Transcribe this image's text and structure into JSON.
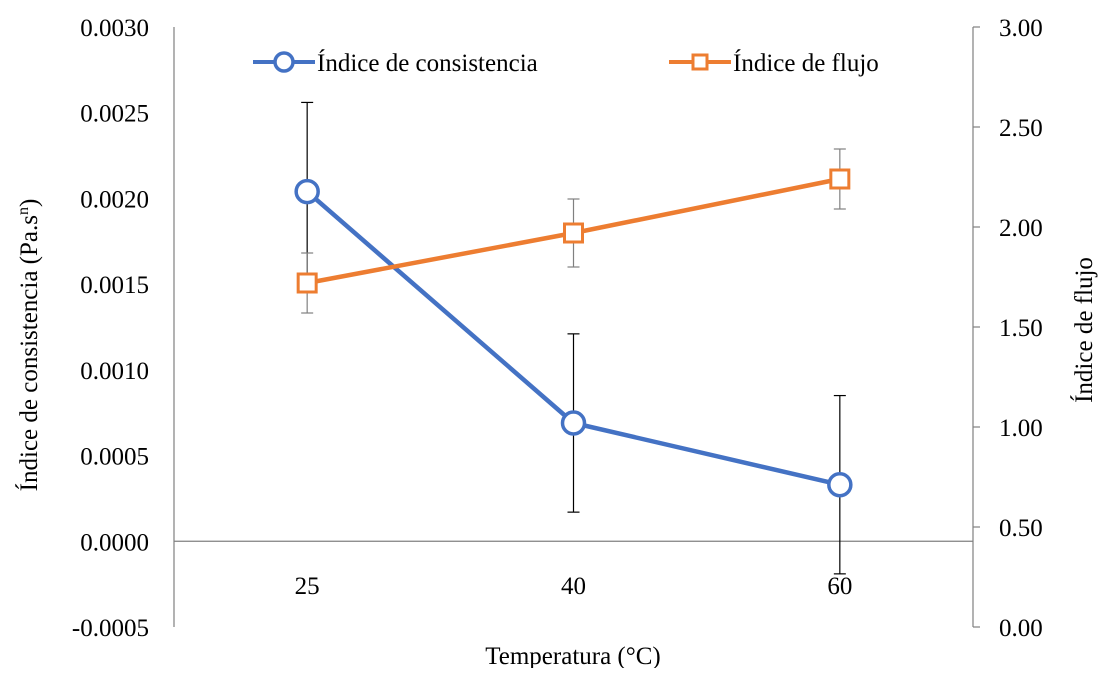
{
  "colors": {
    "consistency": "#4472C4",
    "flow": "#ED7D31",
    "axis": "#808080",
    "errorbar_consistency": "#000000",
    "errorbar_flow": "#808080"
  },
  "chart_data": {
    "type": "line",
    "categories": [
      "25",
      "40",
      "60"
    ],
    "xlabel": "Temperatura (°C)",
    "ylabel": "Índice de consistencia (Pa.s",
    "ylabel_sup": "n",
    "ylabel_close": ")",
    "y2label": "Índice de flujo",
    "ylim": [
      -0.0005,
      0.003
    ],
    "y2lim": [
      0.0,
      3.0
    ],
    "y_ticks": [
      "0.0030",
      "0.0025",
      "0.0020",
      "0.0015",
      "0.0010",
      "0.0005",
      "0.0000",
      "-0.0005"
    ],
    "y_tick_values": [
      0.003,
      0.0025,
      0.002,
      0.0015,
      0.001,
      0.0005,
      0.0,
      -0.0005
    ],
    "y2_ticks": [
      "3.00",
      "2.50",
      "2.00",
      "1.50",
      "1.00",
      "0.50",
      "0.00"
    ],
    "y2_tick_values": [
      3.0,
      2.5,
      2.0,
      1.5,
      1.0,
      0.5,
      0.0
    ],
    "legend_position": "top",
    "grid": false,
    "series": [
      {
        "name": "Índice de consistencia",
        "axis": "left",
        "marker": "circle",
        "values": [
          0.00204,
          0.00069,
          0.00033
        ],
        "error": [
          0.00052,
          0.00052,
          0.00052
        ]
      },
      {
        "name": "Índice de flujo",
        "axis": "right",
        "marker": "square",
        "values": [
          1.72,
          1.97,
          2.24
        ],
        "error": [
          0.15,
          0.17,
          0.15
        ]
      }
    ]
  }
}
